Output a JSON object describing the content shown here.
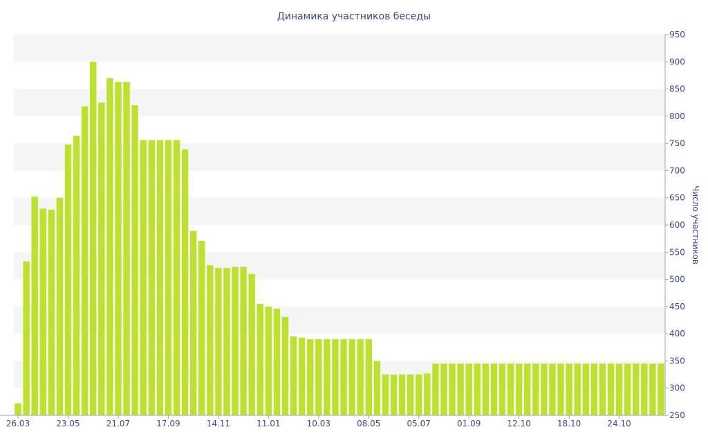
{
  "chart_data": {
    "type": "bar",
    "title": "Динамика участников беседы",
    "xlabel": "",
    "ylabel": "Число участников",
    "y_axis_side": "right",
    "ylim": [
      250,
      950
    ],
    "yticks": [
      250,
      300,
      350,
      400,
      450,
      500,
      550,
      600,
      650,
      700,
      750,
      800,
      850,
      900,
      950
    ],
    "grid": "alternating horizontal bands",
    "x_tick_labels": [
      "26.03",
      "23.05",
      "21.07",
      "17.09",
      "14.11",
      "11.01",
      "10.03",
      "08.05",
      "05.07",
      "01.09",
      "12.10",
      "18.10",
      "24.10"
    ],
    "values": [
      272,
      533,
      652,
      630,
      628,
      650,
      748,
      764,
      818,
      900,
      825,
      870,
      863,
      863,
      820,
      756,
      756,
      756,
      756,
      756,
      739,
      589,
      571,
      526,
      521,
      521,
      523,
      523,
      510,
      455,
      450,
      446,
      431,
      395,
      393,
      390,
      390,
      390,
      390,
      390,
      390,
      390,
      390,
      350,
      325,
      325,
      325,
      325,
      325,
      327,
      345,
      345,
      345,
      345,
      345,
      345,
      345,
      345,
      345,
      345,
      345,
      345,
      345,
      345,
      345,
      345,
      345,
      345,
      345,
      345,
      345,
      345,
      345,
      345,
      345,
      345,
      345,
      345
    ],
    "colors": {
      "bar": "#bce22e",
      "band": "#f5f5f5",
      "text": "#3a4a8a",
      "axis": "#9aa3c6"
    }
  }
}
